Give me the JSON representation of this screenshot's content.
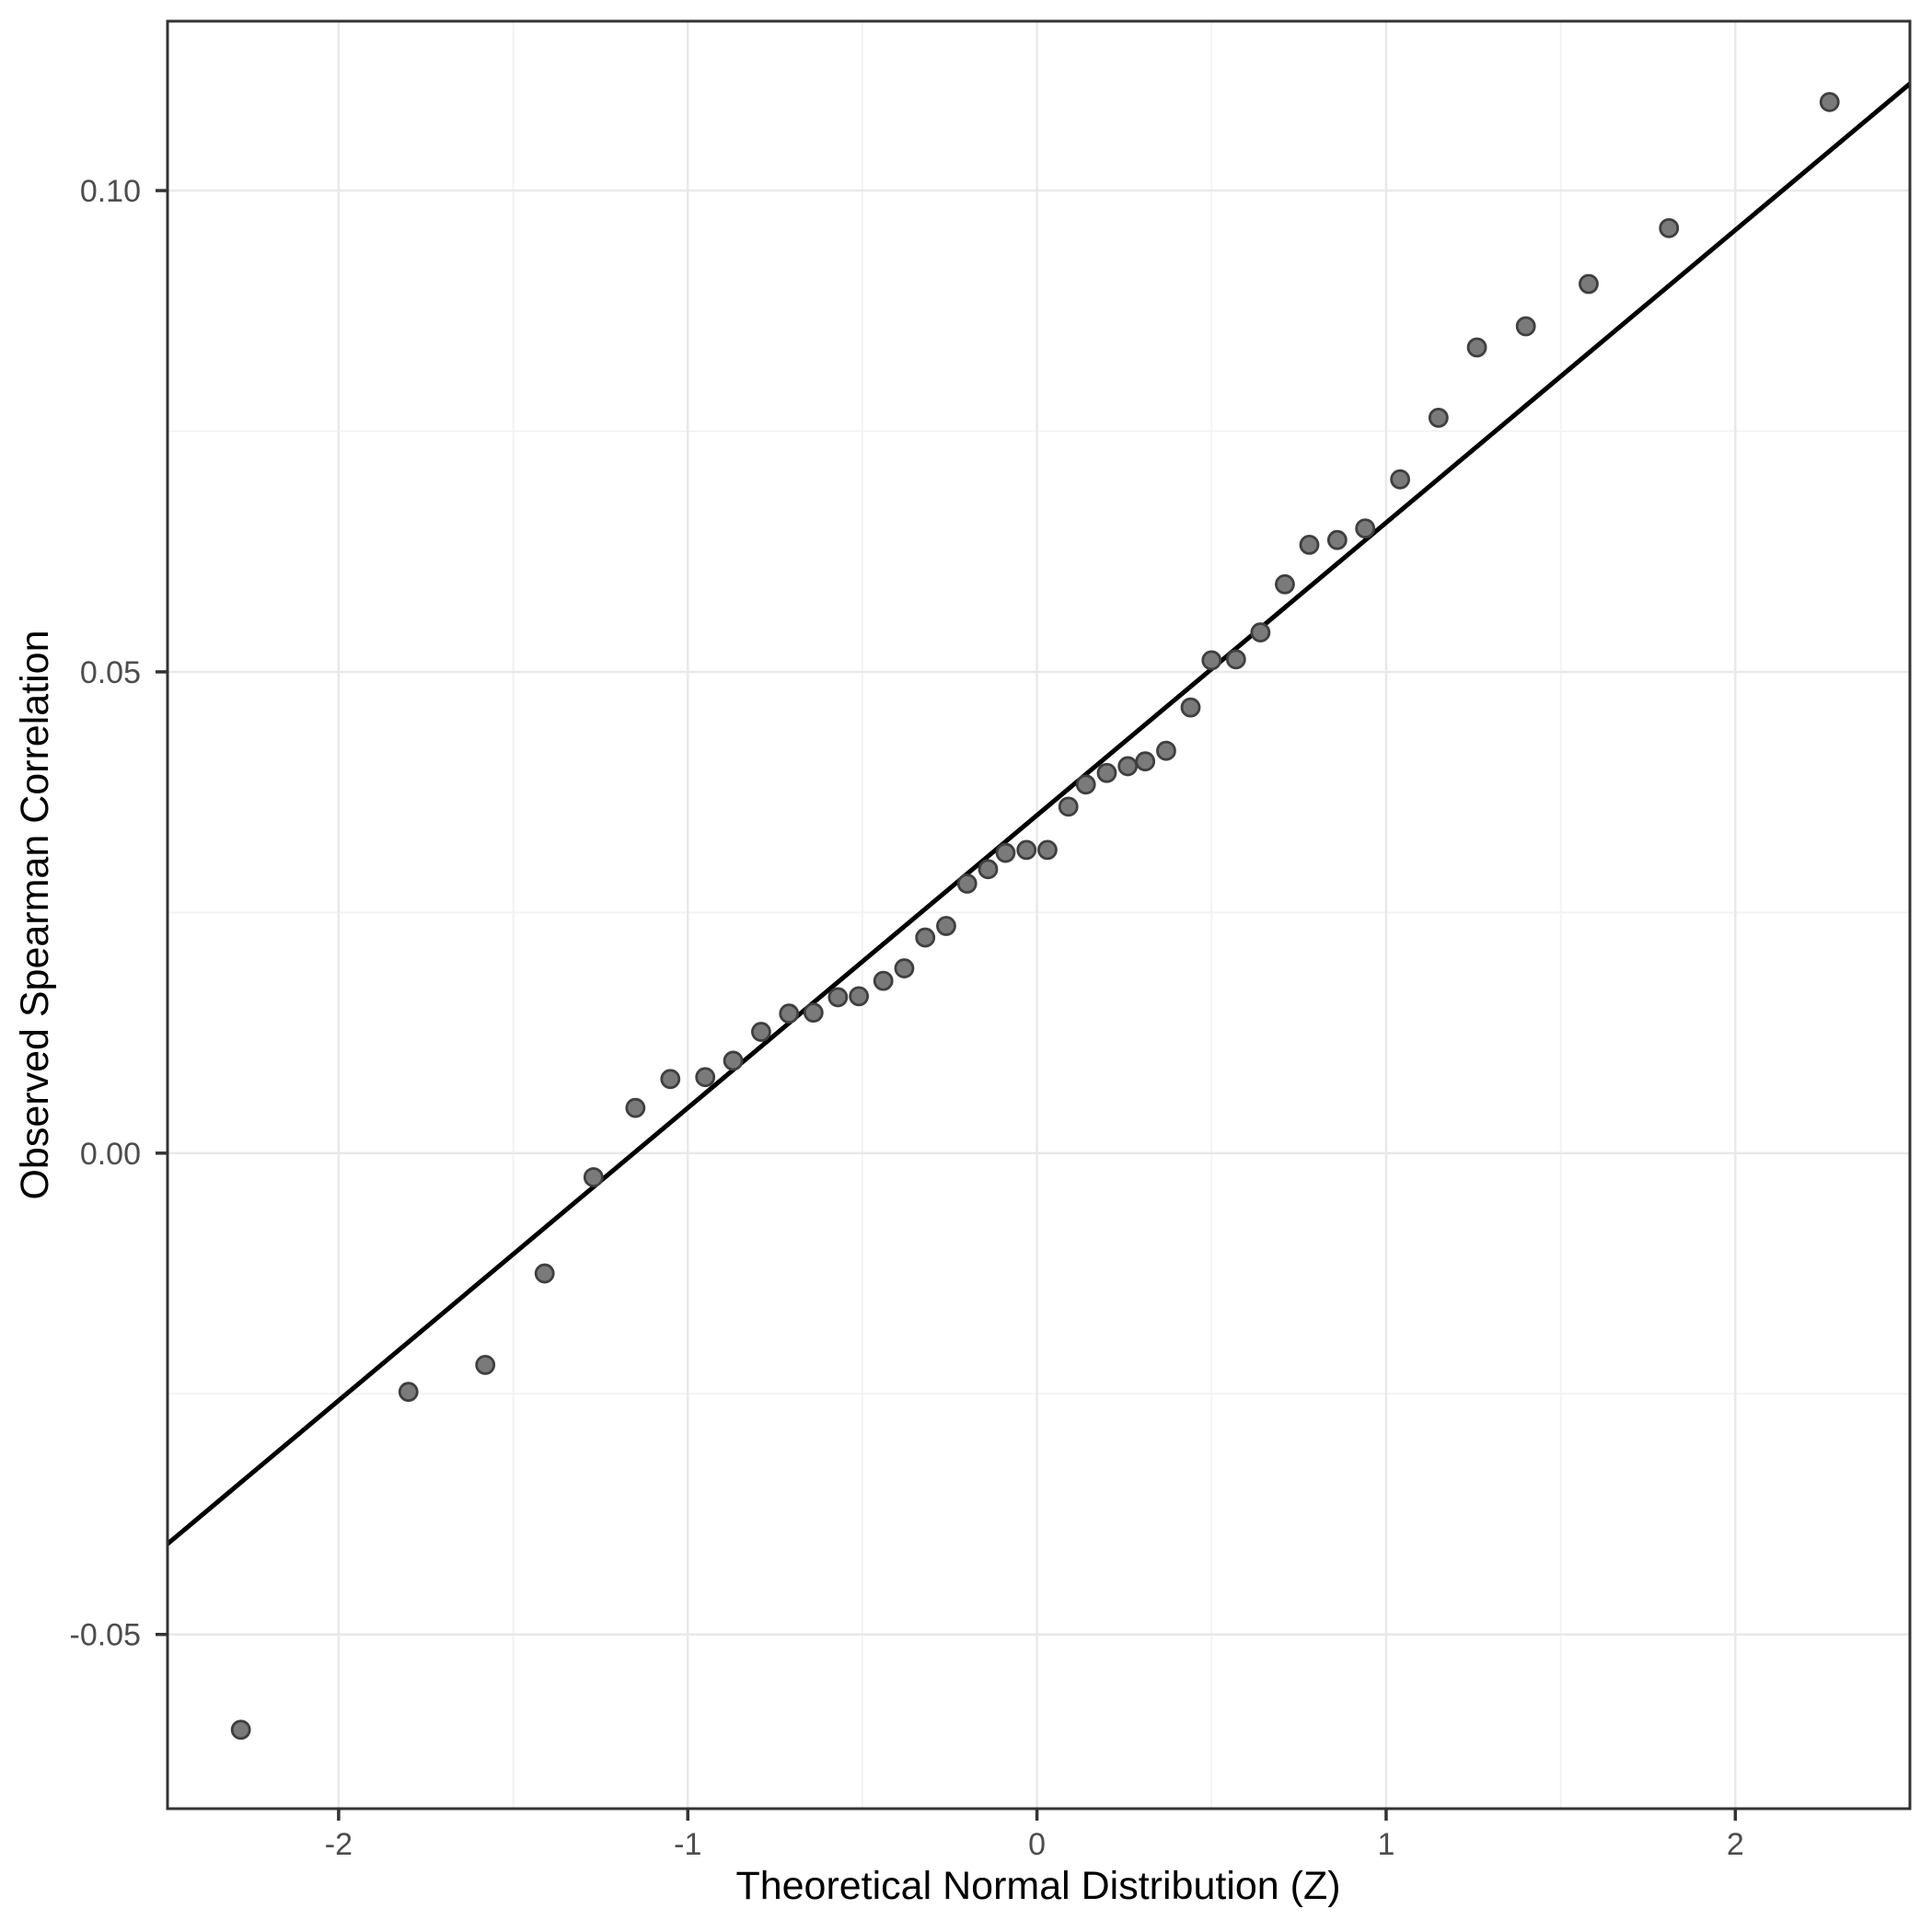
{
  "chart_data": {
    "type": "scatter",
    "title": "",
    "xlabel": "Theoretical Normal Distribution (Z)",
    "ylabel": "Observed Spearman Correlation",
    "xlim": [
      -2.49,
      2.5
    ],
    "ylim": [
      -0.0681,
      0.1176
    ],
    "grid": true,
    "legend_position": "none",
    "x_ticks": {
      "values": [
        -2,
        -1,
        0,
        1,
        2
      ],
      "labels": [
        "-2",
        "-1",
        "0",
        "1",
        "2"
      ]
    },
    "y_ticks": {
      "values": [
        -0.05,
        0.0,
        0.05,
        0.1
      ],
      "labels": [
        "-0.05",
        "0.00",
        "0.05",
        "0.10"
      ]
    },
    "x_minor_ticks": [
      -1.5,
      -0.5,
      0.5,
      1.5
    ],
    "y_minor_ticks": [
      -0.025,
      0.025,
      0.075
    ],
    "ref_line": {
      "slope": 0.0304,
      "intercept": 0.0351
    },
    "points": [
      [
        -2.28,
        -0.0599
      ],
      [
        -1.8,
        -0.0248
      ],
      [
        -1.58,
        -0.022
      ],
      [
        -1.41,
        -0.0125
      ],
      [
        -1.27,
        -0.0025
      ],
      [
        -1.15,
        0.0047
      ],
      [
        -1.05,
        0.0077
      ],
      [
        -0.95,
        0.0079
      ],
      [
        -0.87,
        0.0096
      ],
      [
        -0.79,
        0.0126
      ],
      [
        -0.71,
        0.0145
      ],
      [
        -0.64,
        0.0146
      ],
      [
        -0.57,
        0.0162
      ],
      [
        -0.51,
        0.0163
      ],
      [
        -0.44,
        0.0179
      ],
      [
        -0.38,
        0.0192
      ],
      [
        -0.32,
        0.0224
      ],
      [
        -0.26,
        0.0236
      ],
      [
        -0.2,
        0.028
      ],
      [
        -0.14,
        0.0295
      ],
      [
        -0.09,
        0.0312
      ],
      [
        -0.03,
        0.0315
      ],
      [
        0.03,
        0.0315
      ],
      [
        0.09,
        0.036
      ],
      [
        0.14,
        0.0383
      ],
      [
        0.2,
        0.0395
      ],
      [
        0.26,
        0.0402
      ],
      [
        0.31,
        0.0407
      ],
      [
        0.37,
        0.0418
      ],
      [
        0.44,
        0.0463
      ],
      [
        0.5,
        0.0512
      ],
      [
        0.57,
        0.0513
      ],
      [
        0.64,
        0.0541
      ],
      [
        0.71,
        0.0591
      ],
      [
        0.78,
        0.0632
      ],
      [
        0.86,
        0.0637
      ],
      [
        0.94,
        0.0649
      ],
      [
        1.04,
        0.07
      ],
      [
        1.15,
        0.0764
      ],
      [
        1.26,
        0.0837
      ],
      [
        1.4,
        0.0859
      ],
      [
        1.58,
        0.0903
      ],
      [
        1.81,
        0.0961
      ],
      [
        2.27,
        0.1092
      ]
    ],
    "colors": {
      "point_fill": "#7a7a7a",
      "point_stroke": "#3f3f3f",
      "ref_line": "#000000",
      "grid_major": "#e9e9e9",
      "grid_minor": "#f2f2f2",
      "panel_border": "#333333",
      "tick_mark": "#333333",
      "tick_text": "#4d4d4d",
      "axis_title_text": "#000000",
      "panel_background": "#ffffff"
    }
  }
}
